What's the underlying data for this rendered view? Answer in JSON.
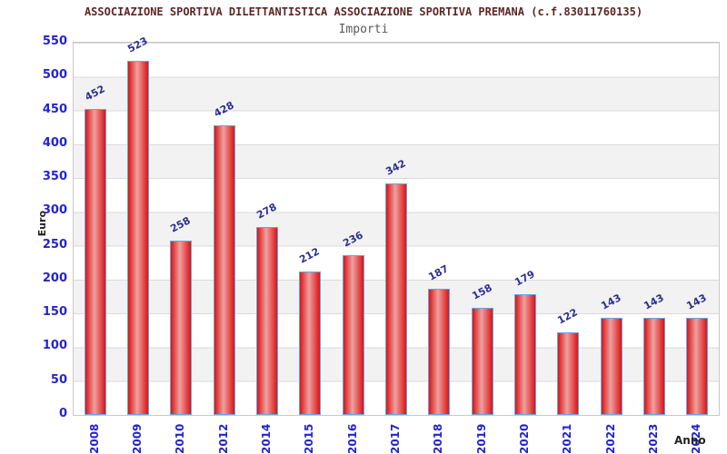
{
  "chart_data": {
    "type": "bar",
    "title": "ASSOCIAZIONE SPORTIVA DILETTANTISTICA ASSOCIAZIONE SPORTIVA PREMANA (c.f.83011760135)",
    "subtitle": "Importi",
    "xlabel": "Anno",
    "ylabel": "Euro",
    "categories": [
      "2008",
      "2009",
      "2010",
      "2012",
      "2014",
      "2015",
      "2016",
      "2017",
      "2018",
      "2019",
      "2020",
      "2021",
      "2022",
      "2023",
      "2024"
    ],
    "values": [
      452,
      523,
      258,
      428,
      278,
      212,
      236,
      342,
      187,
      158,
      179,
      122,
      143,
      143,
      143
    ],
    "ylim": [
      0,
      550
    ],
    "ytick_step": 50,
    "grid": true,
    "legend": "none",
    "colors": {
      "bar_edge_red": "#db1414",
      "bar_center_pink": "#efa0a0",
      "bar_border_blue": "#63a8e8",
      "axis_tick_blue": "#2424cc",
      "value_label_navy": "#2d2d94",
      "title_maroon": "#5d2626",
      "subtitle_gray": "#5a5a5a",
      "band_gray": "#f2f2f2",
      "band_white": "#ffffff",
      "grid_line": "#dadada",
      "axis_title_dark": "#222222",
      "plot_border": "#c9c9c9"
    }
  }
}
